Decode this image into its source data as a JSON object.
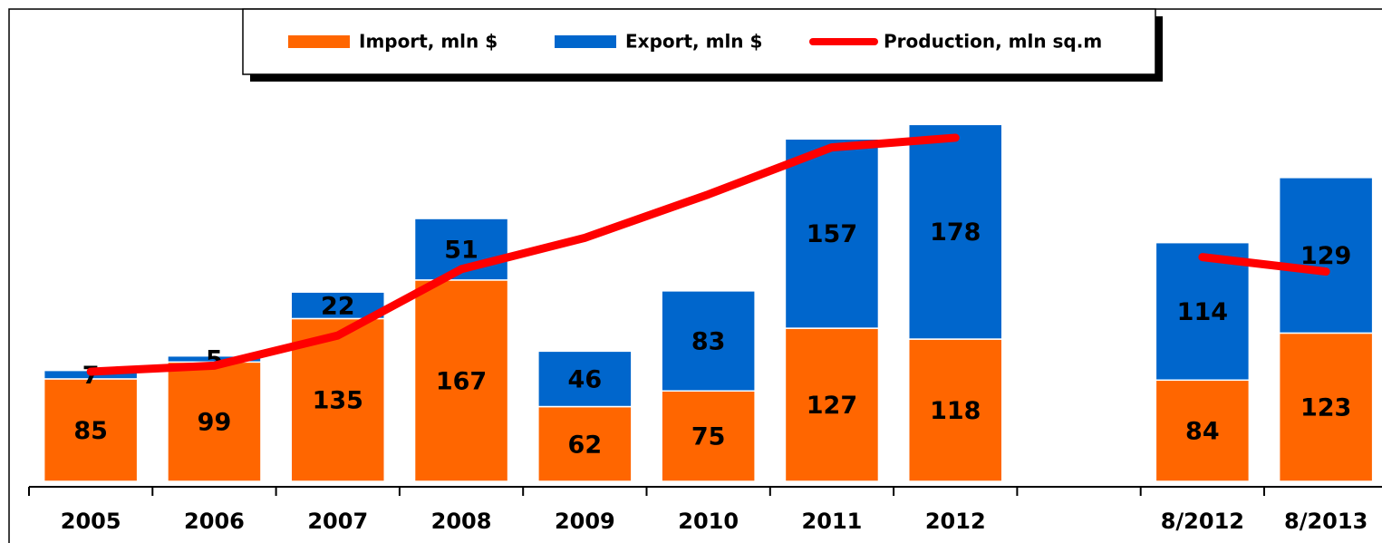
{
  "chart_data": {
    "type": "bar",
    "stacked": true,
    "categories": [
      "2005",
      "2006",
      "2007",
      "2008",
      "2009",
      "2010",
      "2011",
      "2012",
      null,
      "8/2012",
      "8/2013"
    ],
    "series": [
      {
        "name": "Import, mln $",
        "color": "#ff6600",
        "values": [
          85,
          99,
          135,
          167,
          62,
          75,
          127,
          118,
          null,
          84,
          123
        ]
      },
      {
        "name": "Export, mln $",
        "color": "#0066cc",
        "values": [
          7,
          5,
          22,
          51,
          46,
          83,
          157,
          178,
          null,
          114,
          129
        ]
      },
      {
        "name": "Production, mln sq.m",
        "color": "#ff0000",
        "type": "line",
        "values": [
          91,
          96,
          121,
          176,
          202,
          238,
          277,
          285,
          null,
          186,
          174
        ]
      }
    ],
    "ylim": [
      0,
      300
    ],
    "legend": "top"
  }
}
